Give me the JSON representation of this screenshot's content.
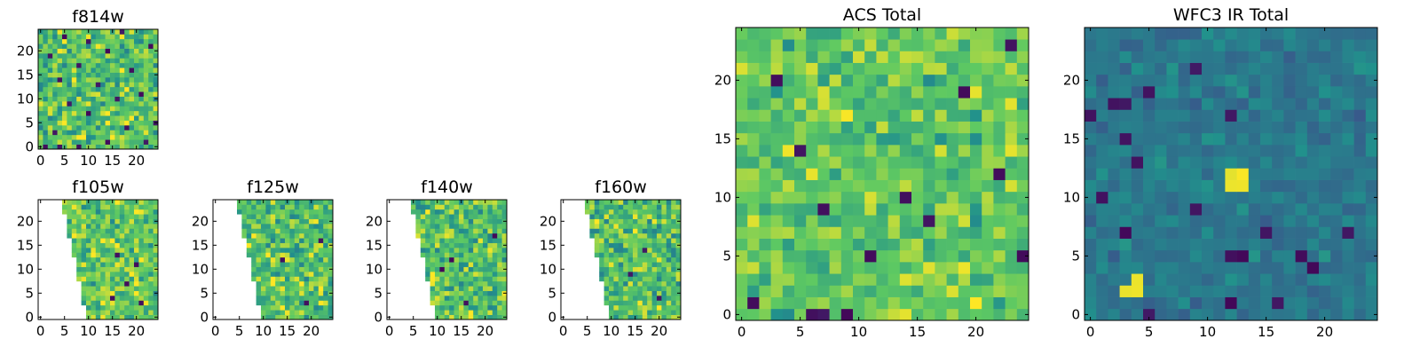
{
  "figure": {
    "background": "#ffffff"
  },
  "colormap": {
    "name": "viridis",
    "stops": [
      "#440154",
      "#3b528b",
      "#21918c",
      "#5ec962",
      "#fde725"
    ]
  },
  "chart_data": [
    {
      "id": "f814w",
      "type": "heatmap",
      "title": "f814w",
      "grid_size": [
        25,
        25
      ],
      "xlim": [
        0,
        24
      ],
      "ylim": [
        0,
        24
      ],
      "xticks": [
        0,
        5,
        10,
        15,
        20
      ],
      "yticks": [
        0,
        5,
        10,
        15,
        20
      ],
      "masked_region": "none",
      "value_range": [
        0.45,
        1.0
      ],
      "mean_level": 0.72,
      "contrast": 0.17,
      "dark_pixels": [
        [
          1,
          0
        ],
        [
          4,
          0
        ],
        [
          8,
          0
        ],
        [
          14,
          1
        ],
        [
          22,
          1
        ],
        [
          3,
          3
        ],
        [
          18,
          4
        ],
        [
          24,
          5
        ],
        [
          10,
          7
        ],
        [
          6,
          9
        ],
        [
          16,
          10
        ],
        [
          21,
          11
        ],
        [
          12,
          13
        ],
        [
          4,
          14
        ],
        [
          19,
          16
        ],
        [
          8,
          17
        ],
        [
          2,
          19
        ],
        [
          14,
          20
        ],
        [
          23,
          21
        ],
        [
          10,
          22
        ],
        [
          5,
          23
        ],
        [
          17,
          24
        ]
      ],
      "bright_pixels": []
    },
    {
      "id": "f105w",
      "type": "heatmap",
      "title": "f105w",
      "grid_size": [
        25,
        25
      ],
      "xlim": [
        0,
        24
      ],
      "ylim": [
        0,
        24
      ],
      "xticks": [
        0,
        5,
        10,
        15,
        20
      ],
      "yticks": [
        0,
        5,
        10,
        15,
        20
      ],
      "masked_region": "left-wedge",
      "mask_edge_bottom": 10,
      "mask_edge_top": 5,
      "value_range": [
        0.45,
        1.0
      ],
      "mean_level": 0.74,
      "contrast": 0.16,
      "dark_pixels": [
        [
          20,
          11
        ],
        [
          15,
          4
        ],
        [
          21,
          3
        ],
        [
          16,
          13
        ],
        [
          18,
          7
        ]
      ],
      "bright_pixels": []
    },
    {
      "id": "f125w",
      "type": "heatmap",
      "title": "f125w",
      "grid_size": [
        25,
        25
      ],
      "xlim": [
        0,
        24
      ],
      "ylim": [
        0,
        24
      ],
      "xticks": [
        0,
        5,
        10,
        15,
        20
      ],
      "yticks": [
        0,
        5,
        10,
        15,
        20
      ],
      "masked_region": "left-wedge",
      "mask_edge_bottom": 10,
      "mask_edge_top": 5,
      "value_range": [
        0.45,
        1.0
      ],
      "mean_level": 0.7,
      "contrast": 0.17,
      "dark_pixels": [
        [
          19,
          3
        ],
        [
          14,
          12
        ],
        [
          22,
          16
        ]
      ],
      "bright_pixels": []
    },
    {
      "id": "f140w",
      "type": "heatmap",
      "title": "f140w",
      "grid_size": [
        25,
        25
      ],
      "xlim": [
        0,
        24
      ],
      "ylim": [
        0,
        24
      ],
      "xticks": [
        0,
        5,
        10,
        15,
        20
      ],
      "yticks": [
        0,
        5,
        10,
        15,
        20
      ],
      "masked_region": "left-wedge",
      "mask_edge_bottom": 10,
      "mask_edge_top": 5,
      "value_range": [
        0.45,
        1.0
      ],
      "mean_level": 0.7,
      "contrast": 0.17,
      "dark_pixels": [
        [
          13,
          12
        ],
        [
          16,
          3
        ],
        [
          22,
          17
        ],
        [
          11,
          10
        ]
      ],
      "bright_pixels": []
    },
    {
      "id": "f160w",
      "type": "heatmap",
      "title": "f160w",
      "grid_size": [
        25,
        25
      ],
      "xlim": [
        0,
        24
      ],
      "ylim": [
        0,
        24
      ],
      "xticks": [
        0,
        5,
        10,
        15,
        20
      ],
      "yticks": [
        0,
        5,
        10,
        15,
        20
      ],
      "masked_region": "left-wedge",
      "mask_edge_bottom": 10,
      "mask_edge_top": 5,
      "value_range": [
        0.45,
        1.0
      ],
      "mean_level": 0.7,
      "contrast": 0.17,
      "dark_pixels": [
        [
          20,
          4
        ],
        [
          14,
          9
        ],
        [
          17,
          14
        ]
      ],
      "bright_pixels": []
    },
    {
      "id": "acs-total",
      "type": "heatmap",
      "title": "ACS Total",
      "grid_size": [
        25,
        25
      ],
      "xlim": [
        0,
        24
      ],
      "ylim": [
        0,
        24
      ],
      "xticks": [
        0,
        5,
        10,
        15,
        20
      ],
      "yticks": [
        0,
        5,
        10,
        15,
        20
      ],
      "masked_region": "none",
      "value_range": [
        0.45,
        1.0
      ],
      "mean_level": 0.74,
      "contrast": 0.13,
      "dark_pixels": [
        [
          6,
          0
        ],
        [
          7,
          0
        ],
        [
          9,
          0
        ],
        [
          1,
          1
        ],
        [
          7,
          9
        ],
        [
          14,
          10
        ],
        [
          22,
          12
        ],
        [
          24,
          5
        ],
        [
          19,
          19
        ],
        [
          23,
          23
        ],
        [
          16,
          8
        ],
        [
          5,
          14
        ],
        [
          11,
          5
        ],
        [
          3,
          20
        ]
      ],
      "bright_pixels": []
    },
    {
      "id": "wfc3-ir-total",
      "type": "heatmap",
      "title": "WFC3 IR Total",
      "grid_size": [
        25,
        25
      ],
      "xlim": [
        0,
        24
      ],
      "ylim": [
        0,
        24
      ],
      "xticks": [
        0,
        5,
        10,
        15,
        20
      ],
      "yticks": [
        0,
        5,
        10,
        15,
        20
      ],
      "masked_region": "none",
      "value_range": [
        0.25,
        1.0
      ],
      "mean_level": 0.4,
      "contrast": 0.06,
      "dark_pixels": [
        [
          5,
          0
        ],
        [
          12,
          1
        ],
        [
          16,
          1
        ],
        [
          12,
          5
        ],
        [
          13,
          5
        ],
        [
          18,
          5
        ],
        [
          19,
          4
        ],
        [
          3,
          7
        ],
        [
          15,
          7
        ],
        [
          22,
          7
        ],
        [
          1,
          10
        ],
        [
          9,
          9
        ],
        [
          4,
          13
        ],
        [
          3,
          15
        ],
        [
          12,
          17
        ],
        [
          2,
          18
        ],
        [
          3,
          18
        ],
        [
          5,
          19
        ],
        [
          9,
          21
        ],
        [
          0,
          17
        ]
      ],
      "bright_pixels": [
        [
          12,
          11
        ],
        [
          13,
          11
        ],
        [
          12,
          12
        ],
        [
          13,
          12
        ],
        [
          3,
          2
        ],
        [
          4,
          2
        ],
        [
          4,
          3
        ]
      ]
    }
  ]
}
